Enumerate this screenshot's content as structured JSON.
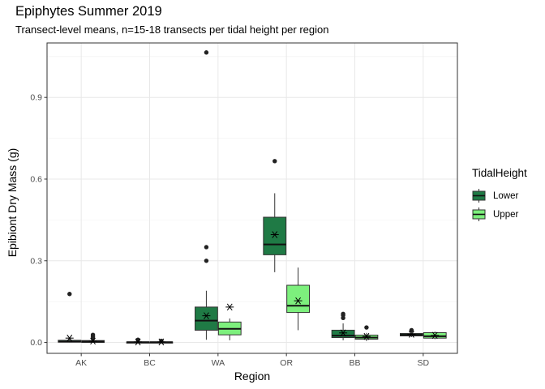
{
  "chart_data": {
    "type": "boxplot",
    "title": "Epiphytes Summer 2019",
    "subtitle": "Transect-level means, n=15-18 transects per tidal height per region",
    "xlabel": "Region",
    "ylabel": "Epibiont Dry Mass (g)",
    "categories": [
      "AK",
      "BC",
      "WA",
      "OR",
      "BB",
      "SD"
    ],
    "ylim": [
      -0.04,
      1.1
    ],
    "yticks": [
      0.0,
      0.3,
      0.6,
      0.9
    ],
    "ytick_labels": [
      "0.0",
      "0.3",
      "0.6",
      "0.9"
    ],
    "grid": true,
    "legend": {
      "title": "TidalHeight",
      "position": "right",
      "entries": [
        "Lower",
        "Upper"
      ]
    },
    "series": [
      {
        "name": "Lower",
        "color": "#1f7a45",
        "boxes": [
          {
            "min": 0.0,
            "q1": 0.001,
            "median": 0.003,
            "q3": 0.008,
            "max": 0.018,
            "mean": 0.016,
            "outliers": [
              0.178
            ]
          },
          {
            "min": 0.0,
            "q1": 0.0,
            "median": 0.001,
            "q3": 0.002,
            "max": 0.004,
            "mean": 0.002,
            "outliers": [
              0.01
            ]
          },
          {
            "min": 0.01,
            "q1": 0.045,
            "median": 0.08,
            "q3": 0.13,
            "max": 0.19,
            "mean": 0.098,
            "outliers": [
              0.3,
              0.35,
              1.065
            ]
          },
          {
            "min": 0.258,
            "q1": 0.322,
            "median": 0.36,
            "q3": 0.46,
            "max": 0.548,
            "mean": 0.396,
            "outliers": [
              0.666
            ]
          },
          {
            "min": 0.008,
            "q1": 0.018,
            "median": 0.025,
            "q3": 0.045,
            "max": 0.07,
            "mean": 0.035,
            "outliers": [
              0.09,
              0.1,
              0.105
            ]
          },
          {
            "min": 0.02,
            "q1": 0.024,
            "median": 0.028,
            "q3": 0.033,
            "max": 0.038,
            "mean": 0.03,
            "outliers": [
              0.045
            ]
          }
        ]
      },
      {
        "name": "Upper",
        "color": "#7df07d",
        "boxes": [
          {
            "min": 0.0,
            "q1": 0.0,
            "median": 0.003,
            "q3": 0.007,
            "max": 0.012,
            "mean": 0.005,
            "outliers": [
              0.015,
              0.022,
              0.028
            ]
          },
          {
            "min": 0.0,
            "q1": 0.0,
            "median": 0.001,
            "q3": 0.002,
            "max": 0.003,
            "mean": 0.002,
            "outliers": [
              0.006
            ]
          },
          {
            "min": 0.008,
            "q1": 0.028,
            "median": 0.05,
            "q3": 0.075,
            "max": 0.088,
            "mean": 0.13,
            "outliers": []
          },
          {
            "min": 0.045,
            "q1": 0.11,
            "median": 0.135,
            "q3": 0.21,
            "max": 0.275,
            "mean": 0.153,
            "outliers": []
          },
          {
            "min": 0.005,
            "q1": 0.012,
            "median": 0.018,
            "q3": 0.027,
            "max": 0.035,
            "mean": 0.022,
            "outliers": [
              0.055
            ]
          },
          {
            "min": 0.012,
            "q1": 0.016,
            "median": 0.023,
            "q3": 0.036,
            "max": 0.04,
            "mean": 0.026,
            "outliers": []
          }
        ]
      }
    ]
  }
}
